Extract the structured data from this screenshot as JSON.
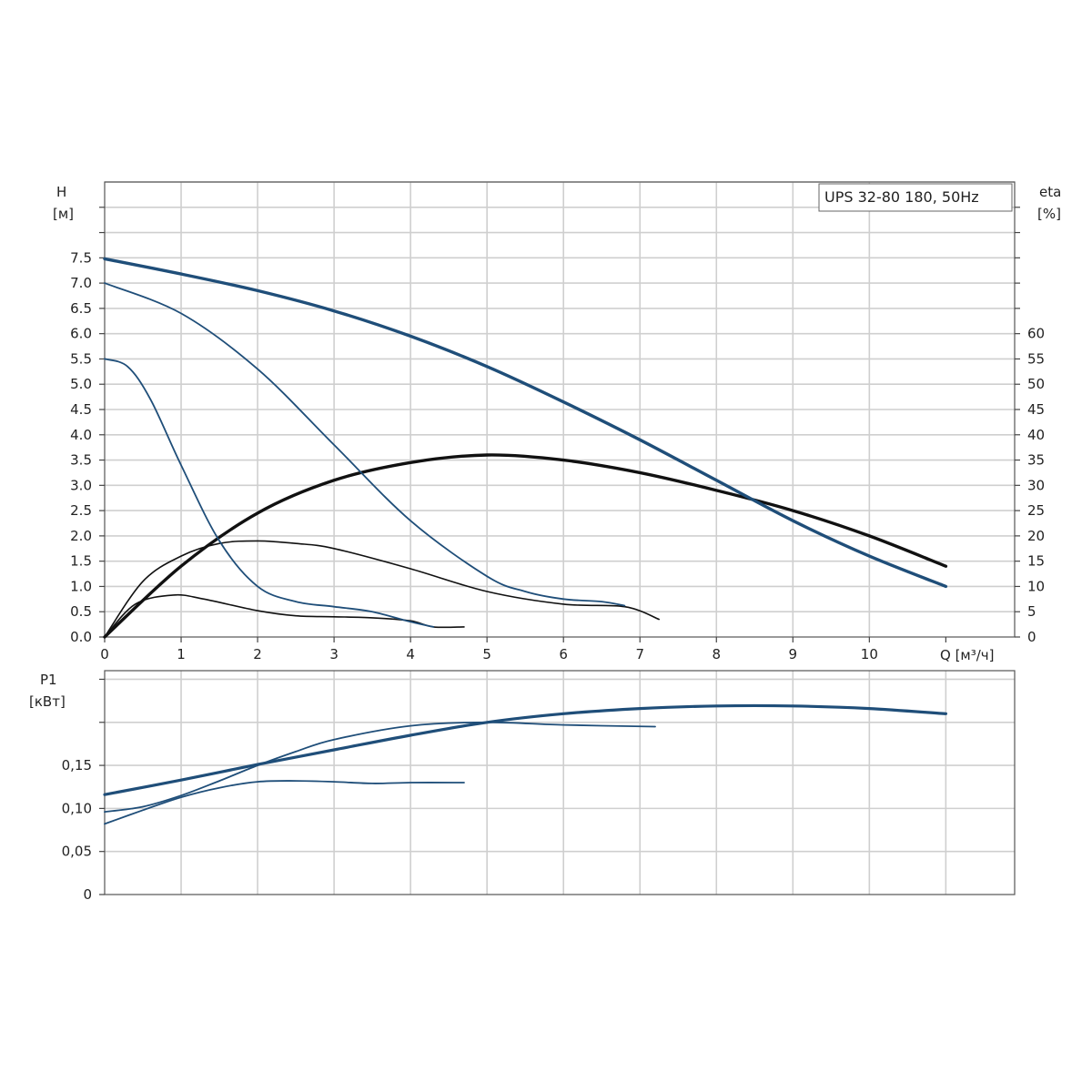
{
  "chart_data": {
    "type": "line",
    "title": "UPS 32-80 180, 50Hz",
    "colors": {
      "head": "#1f4e79",
      "eta": "#111111",
      "power": "#1f4e79",
      "grid": "#cfcfcf"
    },
    "x": {
      "label": "Q [м³/ч]",
      "range": [
        0,
        11.9
      ],
      "ticks": [
        0,
        1,
        2,
        3,
        4,
        5,
        6,
        7,
        8,
        9,
        10
      ],
      "tick_labels": [
        "0",
        "1",
        "2",
        "3",
        "4",
        "5",
        "6",
        "7",
        "8",
        "9",
        "10"
      ]
    },
    "head_axis": {
      "label_line1": "H",
      "label_line2": "[м]",
      "range": [
        0,
        9.0
      ],
      "ticks": [
        0.0,
        0.5,
        1.0,
        1.5,
        2.0,
        2.5,
        3.0,
        3.5,
        4.0,
        4.5,
        5.0,
        5.5,
        6.0,
        6.5,
        7.0,
        7.5
      ],
      "tick_labels": [
        "0.0",
        "0.5",
        "1.0",
        "1.5",
        "2.0",
        "2.5",
        "3.0",
        "3.5",
        "4.0",
        "4.5",
        "5.0",
        "5.5",
        "6.0",
        "6.5",
        "7.0",
        "7.5"
      ]
    },
    "eta_axis": {
      "label_line1": "eta",
      "label_line2": "[%]",
      "range": [
        0,
        90
      ],
      "ticks": [
        0,
        5,
        10,
        15,
        20,
        25,
        30,
        35,
        40,
        45,
        50,
        55,
        60
      ],
      "tick_labels": [
        "0",
        "5",
        "10",
        "15",
        "20",
        "25",
        "30",
        "35",
        "40",
        "45",
        "50",
        "55",
        "60"
      ]
    },
    "power_axis": {
      "label_line1": "P1",
      "label_line2": "[кВт]",
      "range": [
        0,
        0.26
      ],
      "ticks": [
        0,
        0.05,
        0.1,
        0.15
      ],
      "tick_labels": [
        "0",
        "0,05",
        "0,10",
        "0,15"
      ]
    },
    "head_series": [
      {
        "x": [
          0,
          1,
          2,
          3,
          4,
          5,
          6,
          7,
          8,
          9,
          10,
          11
        ],
        "y": [
          7.48,
          7.18,
          6.85,
          6.45,
          5.95,
          5.35,
          4.65,
          3.9,
          3.1,
          2.3,
          1.6,
          1.0
        ]
      },
      {
        "x": [
          0,
          1,
          2,
          3,
          4,
          5,
          5.5,
          6,
          6.5,
          6.8
        ],
        "y": [
          7.0,
          6.4,
          5.3,
          3.8,
          2.3,
          1.2,
          0.9,
          0.75,
          0.7,
          0.62
        ]
      },
      {
        "x": [
          0,
          0.3,
          0.6,
          1,
          1.5,
          2,
          2.5,
          3,
          3.5,
          4,
          4.3
        ],
        "y": [
          5.5,
          5.35,
          4.7,
          3.4,
          1.9,
          1.0,
          0.7,
          0.6,
          0.5,
          0.3,
          0.2
        ]
      }
    ],
    "eta_series": [
      {
        "x": [
          0,
          1,
          2,
          3,
          4,
          5,
          6,
          7,
          8,
          9,
          10,
          11
        ],
        "y": [
          0,
          14,
          24.5,
          31,
          34.5,
          36,
          35,
          32.5,
          29,
          25,
          20,
          14
        ]
      },
      {
        "x": [
          0,
          0.5,
          1,
          1.5,
          2,
          2.5,
          3,
          4,
          5,
          6,
          6.8,
          7.25
        ],
        "y": [
          0,
          11,
          16,
          18.5,
          19,
          18.5,
          17.5,
          13.5,
          9,
          6.5,
          6,
          3.5
        ]
      },
      {
        "x": [
          0,
          0.4,
          0.9,
          1.3,
          2,
          2.5,
          3,
          3.5,
          4,
          4.3,
          4.7
        ],
        "y": [
          0,
          6.5,
          8.3,
          7.5,
          5.2,
          4.2,
          4.0,
          3.8,
          3.2,
          2.0,
          2.0
        ]
      }
    ],
    "power_series": [
      {
        "x": [
          0,
          1,
          2,
          3,
          4,
          5,
          6,
          7,
          8,
          9,
          10,
          11
        ],
        "y": [
          0.116,
          0.133,
          0.151,
          0.168,
          0.185,
          0.2,
          0.21,
          0.216,
          0.219,
          0.219,
          0.216,
          0.21
        ]
      },
      {
        "x": [
          0,
          0.5,
          1,
          1.5,
          2,
          2.5,
          3,
          4,
          5,
          6,
          7.2
        ],
        "y": [
          0.096,
          0.102,
          0.115,
          0.132,
          0.15,
          0.166,
          0.18,
          0.196,
          0.2,
          0.197,
          0.195
        ]
      },
      {
        "x": [
          0,
          0.5,
          1,
          1.5,
          2,
          2.5,
          3,
          3.5,
          4,
          4.7
        ],
        "y": [
          0.082,
          0.098,
          0.113,
          0.124,
          0.131,
          0.132,
          0.131,
          0.129,
          0.13,
          0.13
        ]
      }
    ]
  }
}
